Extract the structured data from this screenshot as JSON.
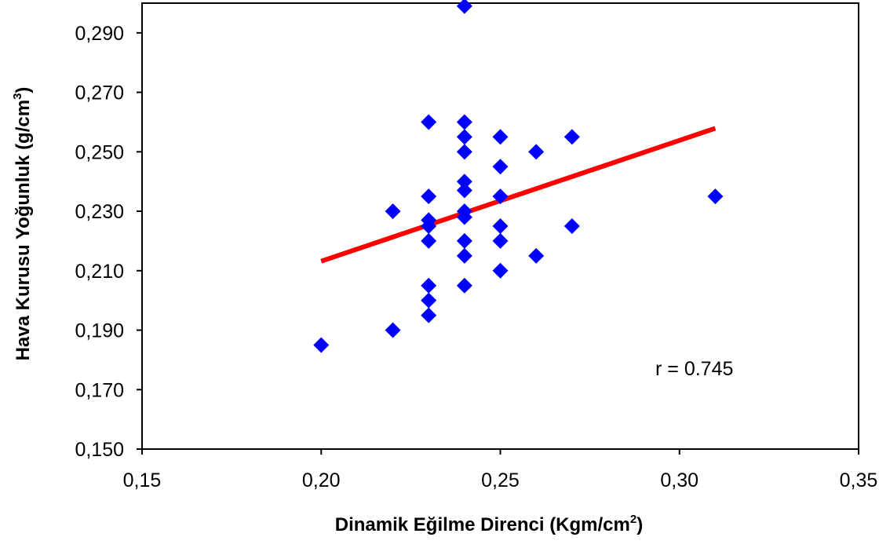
{
  "chart_data": {
    "type": "scatter",
    "title": "",
    "xlabel": "Dinamik Eğilme Direnci (Kgm/cm",
    "xlabel_sup": "2",
    "xlabel_end": ")",
    "ylabel": "Hava Kurusu Yoğunluk (g/cm",
    "ylabel_sup": "3",
    "ylabel_end": ")",
    "xlim": [
      0.15,
      0.35
    ],
    "ylim": [
      0.15,
      0.3
    ],
    "x_ticks": [
      0.15,
      0.2,
      0.25,
      0.3,
      0.35
    ],
    "x_tick_labels": [
      "0,15",
      "0,20",
      "0,25",
      "0,30",
      "0,35"
    ],
    "y_ticks": [
      0.15,
      0.17,
      0.19,
      0.21,
      0.23,
      0.25,
      0.27,
      0.29
    ],
    "y_tick_labels": [
      "0,150",
      "0,170",
      "0,190",
      "0,210",
      "0,230",
      "0,250",
      "0,270",
      "0,290"
    ],
    "grid": false,
    "legend": "none",
    "marker": "diamond",
    "marker_color": "#0000FF",
    "trendline_color": "#FF0000",
    "points": [
      {
        "x": 0.2,
        "y": 0.185
      },
      {
        "x": 0.22,
        "y": 0.19
      },
      {
        "x": 0.22,
        "y": 0.23
      },
      {
        "x": 0.23,
        "y": 0.195
      },
      {
        "x": 0.23,
        "y": 0.2
      },
      {
        "x": 0.23,
        "y": 0.205
      },
      {
        "x": 0.23,
        "y": 0.22
      },
      {
        "x": 0.23,
        "y": 0.225
      },
      {
        "x": 0.23,
        "y": 0.227
      },
      {
        "x": 0.23,
        "y": 0.235
      },
      {
        "x": 0.23,
        "y": 0.26
      },
      {
        "x": 0.24,
        "y": 0.205
      },
      {
        "x": 0.24,
        "y": 0.215
      },
      {
        "x": 0.24,
        "y": 0.22
      },
      {
        "x": 0.24,
        "y": 0.228
      },
      {
        "x": 0.24,
        "y": 0.23
      },
      {
        "x": 0.24,
        "y": 0.237
      },
      {
        "x": 0.24,
        "y": 0.24
      },
      {
        "x": 0.24,
        "y": 0.25
      },
      {
        "x": 0.24,
        "y": 0.255
      },
      {
        "x": 0.24,
        "y": 0.26
      },
      {
        "x": 0.24,
        "y": 0.299
      },
      {
        "x": 0.25,
        "y": 0.21
      },
      {
        "x": 0.25,
        "y": 0.22
      },
      {
        "x": 0.25,
        "y": 0.225
      },
      {
        "x": 0.25,
        "y": 0.235
      },
      {
        "x": 0.25,
        "y": 0.245
      },
      {
        "x": 0.25,
        "y": 0.255
      },
      {
        "x": 0.26,
        "y": 0.215
      },
      {
        "x": 0.26,
        "y": 0.25
      },
      {
        "x": 0.27,
        "y": 0.225
      },
      {
        "x": 0.27,
        "y": 0.255
      },
      {
        "x": 0.31,
        "y": 0.235
      }
    ],
    "trendline": {
      "x": [
        0.2,
        0.31
      ],
      "y": [
        0.2132,
        0.2579
      ]
    },
    "annotation": "r = 0.745"
  }
}
